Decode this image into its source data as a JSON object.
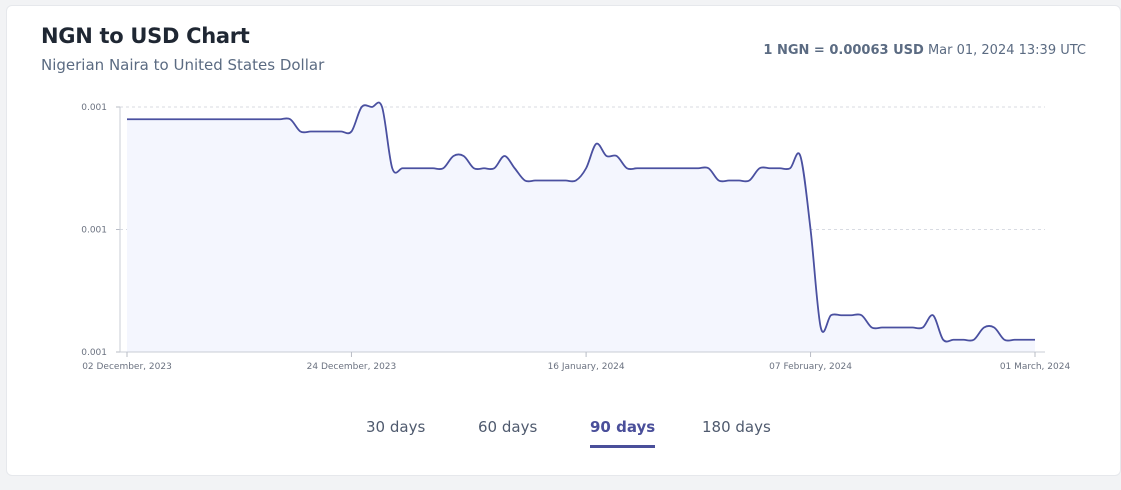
{
  "header": {
    "title": "NGN to USD Chart",
    "subtitle": "Nigerian Naira to United States Dollar",
    "rate_strong": "1 NGN = 0.00063 USD",
    "rate_time": "Mar 01, 2024 13:39 UTC"
  },
  "tabs": [
    {
      "label": "30 days",
      "active": false
    },
    {
      "label": "60 days",
      "active": false
    },
    {
      "label": "90 days",
      "active": true
    },
    {
      "label": "180 days",
      "active": false
    }
  ],
  "colors": {
    "line": "#4a50a0",
    "fill": "#f4f6fe",
    "grid": "#d8dbe2",
    "axis_text": "#6b7280"
  },
  "chart_data": {
    "type": "area",
    "title": "",
    "xlabel": "",
    "ylabel": "",
    "ylim": [
      0.000625,
      0.000645
    ],
    "y_ticks": [
      0.000625,
      0.000635,
      0.000645
    ],
    "y_tick_labels": [
      "0.001",
      "0.001",
      "0.001"
    ],
    "x_ticks": [
      {
        "day": 0,
        "label": "02 December, 2023"
      },
      {
        "day": 22,
        "label": "24 December, 2023"
      },
      {
        "day": 45,
        "label": "16 January, 2024"
      },
      {
        "day": 67,
        "label": "07 February, 2024"
      },
      {
        "day": 89,
        "label": "01 March, 2024"
      }
    ],
    "grid": true,
    "series": [
      {
        "values": [
          0.000644,
          0.000644,
          0.000644,
          0.000644,
          0.000644,
          0.000644,
          0.000644,
          0.000644,
          0.000644,
          0.000644,
          0.000644,
          0.000644,
          0.000644,
          0.000644,
          0.000644,
          0.000644,
          0.000644,
          0.000643,
          0.000643,
          0.000643,
          0.000643,
          0.000643,
          0.000643,
          0.000645,
          0.000645,
          0.000645,
          0.00064,
          0.00064,
          0.00064,
          0.00064,
          0.00064,
          0.00064,
          0.000641,
          0.000641,
          0.00064,
          0.00064,
          0.00064,
          0.000641,
          0.00064,
          0.000639,
          0.000639,
          0.000639,
          0.000639,
          0.000639,
          0.000639,
          0.00064,
          0.000642,
          0.000641,
          0.000641,
          0.00064,
          0.00064,
          0.00064,
          0.00064,
          0.00064,
          0.00064,
          0.00064,
          0.00064,
          0.00064,
          0.000639,
          0.000639,
          0.000639,
          0.000639,
          0.00064,
          0.00064,
          0.00064,
          0.00064,
          0.000641,
          0.000635,
          0.000627,
          0.000628,
          0.000628,
          0.000628,
          0.000628,
          0.000627,
          0.000627,
          0.000627,
          0.000627,
          0.000627,
          0.000627,
          0.000628,
          0.000626,
          0.000626,
          0.000626,
          0.000626,
          0.000627,
          0.000627,
          0.000626,
          0.000626,
          0.000626,
          0.000626
        ]
      }
    ]
  }
}
